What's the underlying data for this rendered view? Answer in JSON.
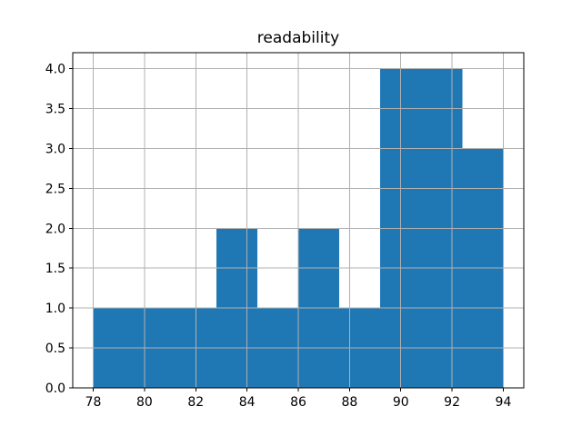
{
  "chart_data": {
    "type": "bar",
    "subtype": "histogram",
    "title": "readability",
    "bin_edges": [
      78.0,
      79.6,
      81.2,
      82.8,
      84.4,
      86.0,
      87.6,
      89.2,
      90.8,
      92.4,
      94.0
    ],
    "counts": [
      1,
      1,
      1,
      2,
      1,
      2,
      1,
      4,
      4,
      3
    ],
    "x_ticks": [
      78,
      80,
      82,
      84,
      86,
      88,
      90,
      92,
      94
    ],
    "x_tick_labels": [
      "78",
      "80",
      "82",
      "84",
      "86",
      "88",
      "90",
      "92",
      "94"
    ],
    "y_ticks": [
      0,
      0.5,
      1,
      1.5,
      2,
      2.5,
      3,
      3.5,
      4
    ],
    "y_tick_labels": [
      "0.0",
      "0.5",
      "1.0",
      "1.5",
      "2.0",
      "2.5",
      "3.0",
      "3.5",
      "4.0"
    ],
    "xlim": [
      77.2,
      94.8
    ],
    "ylim": [
      0,
      4.2
    ],
    "grid": true,
    "legend": false,
    "grid_above_bars": true,
    "bar_color": "#1f77b4",
    "grid_color": "#b0b0b0",
    "spine_color": "#000000",
    "background_color": "#ffffff"
  }
}
